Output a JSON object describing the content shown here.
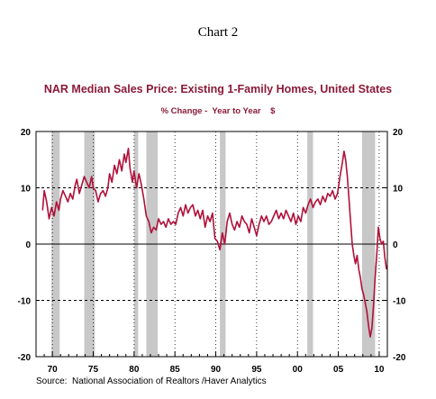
{
  "header": {
    "chart_number": "Chart 2",
    "title": "NAR Median Sales Price: Existing 1-Family Homes, United States",
    "subtitle": "% Change -  Year to Year    $"
  },
  "footer": {
    "source": "Source:  National Association of Realtors /Haver Analytics"
  },
  "colors": {
    "series": "#b0103a",
    "title": "#8b1a3a",
    "recession": "#c8c8c8"
  },
  "chart_data": {
    "type": "line",
    "title": "NAR Median Sales Price: Existing 1-Family Homes, United States",
    "subtitle": "% Change -  Year to Year    $",
    "xlabel": "",
    "ylabel": "",
    "xlim": [
      1968,
      2011
    ],
    "ylim": [
      -20,
      20
    ],
    "x_ticks": [
      1970,
      1975,
      1980,
      1985,
      1990,
      1995,
      2000,
      2005,
      2010
    ],
    "x_tick_labels": [
      "70",
      "75",
      "80",
      "85",
      "90",
      "95",
      "00",
      "05",
      "10"
    ],
    "y_ticks": [
      -20,
      -10,
      0,
      10,
      20
    ],
    "y_tick_labels": [
      "-20",
      "-10",
      "0",
      "10",
      "20"
    ],
    "grid": {
      "x": true,
      "y": true,
      "style": "dashed"
    },
    "recessions": [
      [
        1969.9,
        1970.9
      ],
      [
        1973.9,
        1975.2
      ],
      [
        1980.0,
        1980.5
      ],
      [
        1981.5,
        1982.9
      ],
      [
        1990.5,
        1991.2
      ],
      [
        2001.2,
        2001.9
      ],
      [
        2007.9,
        2009.5
      ]
    ],
    "series": [
      {
        "values": [
          [
            1968.8,
            6.0
          ],
          [
            1969.0,
            9.5
          ],
          [
            1969.3,
            7.5
          ],
          [
            1969.6,
            4.5
          ],
          [
            1969.9,
            6.5
          ],
          [
            1970.2,
            5.0
          ],
          [
            1970.5,
            7.5
          ],
          [
            1970.8,
            6.0
          ],
          [
            1971.0,
            8.0
          ],
          [
            1971.3,
            9.5
          ],
          [
            1971.6,
            8.5
          ],
          [
            1971.9,
            7.5
          ],
          [
            1972.2,
            9.0
          ],
          [
            1972.5,
            8.0
          ],
          [
            1972.8,
            10.5
          ],
          [
            1973.0,
            11.5
          ],
          [
            1973.3,
            9.0
          ],
          [
            1973.6,
            10.5
          ],
          [
            1973.9,
            12.0
          ],
          [
            1974.2,
            11.0
          ],
          [
            1974.5,
            10.0
          ],
          [
            1974.8,
            12.0
          ],
          [
            1975.0,
            10.0
          ],
          [
            1975.3,
            9.5
          ],
          [
            1975.6,
            7.5
          ],
          [
            1975.9,
            9.0
          ],
          [
            1976.2,
            9.5
          ],
          [
            1976.5,
            8.5
          ],
          [
            1976.8,
            10.0
          ],
          [
            1977.0,
            12.5
          ],
          [
            1977.3,
            11.0
          ],
          [
            1977.6,
            14.0
          ],
          [
            1977.9,
            12.5
          ],
          [
            1978.2,
            15.0
          ],
          [
            1978.5,
            13.0
          ],
          [
            1978.8,
            16.0
          ],
          [
            1979.0,
            14.5
          ],
          [
            1979.3,
            17.0
          ],
          [
            1979.5,
            13.5
          ],
          [
            1979.8,
            11.0
          ],
          [
            1980.0,
            13.0
          ],
          [
            1980.3,
            10.0
          ],
          [
            1980.6,
            12.5
          ],
          [
            1980.9,
            10.5
          ],
          [
            1981.2,
            8.0
          ],
          [
            1981.5,
            5.0
          ],
          [
            1981.8,
            4.0
          ],
          [
            1982.1,
            2.0
          ],
          [
            1982.4,
            3.0
          ],
          [
            1982.7,
            2.5
          ],
          [
            1983.0,
            4.5
          ],
          [
            1983.3,
            3.5
          ],
          [
            1983.6,
            4.0
          ],
          [
            1983.9,
            3.0
          ],
          [
            1984.2,
            4.5
          ],
          [
            1984.5,
            3.5
          ],
          [
            1984.8,
            4.0
          ],
          [
            1985.1,
            3.5
          ],
          [
            1985.4,
            5.5
          ],
          [
            1985.7,
            6.5
          ],
          [
            1986.0,
            5.0
          ],
          [
            1986.3,
            7.0
          ],
          [
            1986.6,
            5.5
          ],
          [
            1986.9,
            6.5
          ],
          [
            1987.2,
            7.0
          ],
          [
            1987.5,
            5.0
          ],
          [
            1987.8,
            6.0
          ],
          [
            1988.1,
            4.5
          ],
          [
            1988.4,
            6.0
          ],
          [
            1988.7,
            3.0
          ],
          [
            1989.0,
            5.0
          ],
          [
            1989.3,
            4.0
          ],
          [
            1989.6,
            5.5
          ],
          [
            1989.9,
            1.0
          ],
          [
            1990.2,
            0.5
          ],
          [
            1990.5,
            -1.0
          ],
          [
            1990.8,
            2.0
          ],
          [
            1991.1,
            0.0
          ],
          [
            1991.4,
            4.0
          ],
          [
            1991.7,
            5.5
          ],
          [
            1992.0,
            3.5
          ],
          [
            1992.3,
            2.5
          ],
          [
            1992.6,
            4.0
          ],
          [
            1992.9,
            3.0
          ],
          [
            1993.2,
            5.0
          ],
          [
            1993.5,
            4.0
          ],
          [
            1993.8,
            3.5
          ],
          [
            1994.1,
            2.0
          ],
          [
            1994.4,
            4.5
          ],
          [
            1994.7,
            3.0
          ],
          [
            1995.0,
            1.5
          ],
          [
            1995.3,
            3.5
          ],
          [
            1995.6,
            5.0
          ],
          [
            1995.9,
            4.0
          ],
          [
            1996.2,
            5.0
          ],
          [
            1996.5,
            3.5
          ],
          [
            1996.8,
            4.0
          ],
          [
            1997.1,
            5.0
          ],
          [
            1997.4,
            6.0
          ],
          [
            1997.7,
            4.5
          ],
          [
            1998.0,
            5.5
          ],
          [
            1998.3,
            4.5
          ],
          [
            1998.6,
            6.0
          ],
          [
            1998.9,
            5.0
          ],
          [
            1999.2,
            4.0
          ],
          [
            1999.5,
            5.5
          ],
          [
            1999.8,
            3.5
          ],
          [
            2000.1,
            5.0
          ],
          [
            2000.4,
            4.0
          ],
          [
            2000.7,
            6.5
          ],
          [
            2001.0,
            5.5
          ],
          [
            2001.3,
            7.0
          ],
          [
            2001.6,
            8.0
          ],
          [
            2001.9,
            6.5
          ],
          [
            2002.2,
            7.5
          ],
          [
            2002.5,
            8.0
          ],
          [
            2002.8,
            7.0
          ],
          [
            2003.1,
            8.5
          ],
          [
            2003.4,
            7.5
          ],
          [
            2003.7,
            9.0
          ],
          [
            2004.0,
            8.5
          ],
          [
            2004.3,
            9.5
          ],
          [
            2004.6,
            8.0
          ],
          [
            2004.9,
            9.0
          ],
          [
            2005.2,
            12.0
          ],
          [
            2005.5,
            14.5
          ],
          [
            2005.7,
            16.5
          ],
          [
            2005.9,
            15.0
          ],
          [
            2006.1,
            12.0
          ],
          [
            2006.3,
            8.0
          ],
          [
            2006.5,
            4.0
          ],
          [
            2006.7,
            0.0
          ],
          [
            2006.9,
            -2.0
          ],
          [
            2007.1,
            -3.5
          ],
          [
            2007.3,
            -2.0
          ],
          [
            2007.5,
            -4.5
          ],
          [
            2007.7,
            -6.0
          ],
          [
            2007.9,
            -8.0
          ],
          [
            2008.1,
            -9.0
          ],
          [
            2008.3,
            -10.5
          ],
          [
            2008.5,
            -12.0
          ],
          [
            2008.7,
            -14.5
          ],
          [
            2008.9,
            -16.5
          ],
          [
            2009.1,
            -15.0
          ],
          [
            2009.3,
            -11.0
          ],
          [
            2009.5,
            -6.0
          ],
          [
            2009.7,
            -2.0
          ],
          [
            2009.9,
            3.0
          ],
          [
            2010.1,
            1.0
          ],
          [
            2010.3,
            0.0
          ],
          [
            2010.5,
            0.5
          ],
          [
            2010.7,
            -2.5
          ],
          [
            2010.9,
            -4.5
          ]
        ]
      }
    ]
  }
}
